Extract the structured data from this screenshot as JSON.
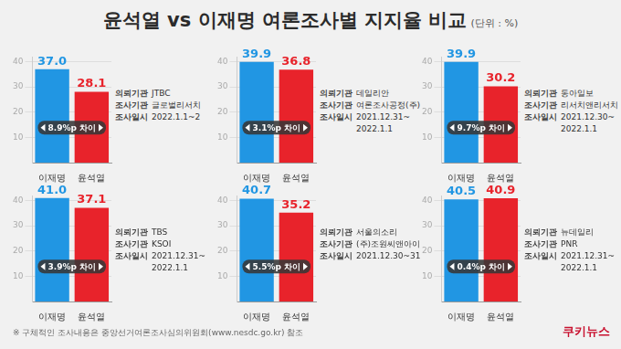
{
  "title": "윤석열 vs 이재명 여론조사별 지지율 비교",
  "unit": "(단위 : %)",
  "footnote": "※ 구체적인 조사내용은 중앙선거여론조사심의위원회(www.nesdc.go.kr) 참조",
  "source": "쿠키뉴스",
  "chart_data": [
    {
      "type": "bar",
      "categories": [
        "이재명",
        "윤석열"
      ],
      "values": [
        37.0,
        28.1
      ],
      "value_labels": [
        "37.0",
        "28.1"
      ],
      "colors": [
        "#2196e3",
        "#e8232b"
      ],
      "ylim": [
        0,
        42
      ],
      "yticks": [
        10,
        20,
        30,
        40
      ],
      "grid": true,
      "data_labels": true,
      "annotation": "8.9%p 차이",
      "info": [
        {
          "label": "의뢰기관",
          "value": [
            "JTBC"
          ]
        },
        {
          "label": "조사기관",
          "value": [
            "글로벌리서치"
          ]
        },
        {
          "label": "조사일시",
          "value": [
            "2022.1.1~2"
          ]
        }
      ]
    },
    {
      "type": "bar",
      "categories": [
        "이재명",
        "윤석열"
      ],
      "values": [
        39.9,
        36.8
      ],
      "value_labels": [
        "39.9",
        "36.8"
      ],
      "colors": [
        "#2196e3",
        "#e8232b"
      ],
      "ylim": [
        0,
        42
      ],
      "yticks": [
        10,
        20,
        30,
        40
      ],
      "grid": true,
      "data_labels": true,
      "annotation": "3.1%p 차이",
      "info": [
        {
          "label": "의뢰기관",
          "value": [
            "데일리안"
          ]
        },
        {
          "label": "조사기관",
          "value": [
            "여론조사공정(주)"
          ]
        },
        {
          "label": "조사일시",
          "value": [
            "2021.12.31~",
            "2022.1.1"
          ]
        }
      ]
    },
    {
      "type": "bar",
      "categories": [
        "이재명",
        "윤석열"
      ],
      "values": [
        39.9,
        30.2
      ],
      "value_labels": [
        "39.9",
        "30.2"
      ],
      "colors": [
        "#2196e3",
        "#e8232b"
      ],
      "ylim": [
        0,
        42
      ],
      "yticks": [
        10,
        20,
        30,
        40
      ],
      "grid": true,
      "data_labels": true,
      "annotation": "9.7%p 차이",
      "info": [
        {
          "label": "의뢰기관",
          "value": [
            "동아일보"
          ]
        },
        {
          "label": "조사기관",
          "value": [
            "리서치앤리서치"
          ]
        },
        {
          "label": "조사일시",
          "value": [
            "2021.12.30~",
            "2022.1.1"
          ]
        }
      ]
    },
    {
      "type": "bar",
      "categories": [
        "이재명",
        "윤석열"
      ],
      "values": [
        41.0,
        37.1
      ],
      "value_labels": [
        "41.0",
        "37.1"
      ],
      "colors": [
        "#2196e3",
        "#e8232b"
      ],
      "ylim": [
        0,
        42
      ],
      "yticks": [
        10,
        20,
        30,
        40
      ],
      "grid": true,
      "data_labels": true,
      "annotation": "3.9%p 차이",
      "info": [
        {
          "label": "의뢰기관",
          "value": [
            "TBS"
          ]
        },
        {
          "label": "조사기관",
          "value": [
            "KSOI"
          ]
        },
        {
          "label": "조사일시",
          "value": [
            "2021.12.31~",
            "2022.1.1"
          ]
        }
      ]
    },
    {
      "type": "bar",
      "categories": [
        "이재명",
        "윤석열"
      ],
      "values": [
        40.7,
        35.2
      ],
      "value_labels": [
        "40.7",
        "35.2"
      ],
      "colors": [
        "#2196e3",
        "#e8232b"
      ],
      "ylim": [
        0,
        42
      ],
      "yticks": [
        10,
        20,
        30,
        40
      ],
      "grid": true,
      "data_labels": true,
      "annotation": "5.5%p 차이",
      "info": [
        {
          "label": "의뢰기관",
          "value": [
            "서울의소리"
          ]
        },
        {
          "label": "조사기관",
          "value": [
            "(주)조원씨앤아이"
          ]
        },
        {
          "label": "조사일시",
          "value": [
            "2021.12.30~31"
          ]
        }
      ]
    },
    {
      "type": "bar",
      "categories": [
        "이재명",
        "윤석열"
      ],
      "values": [
        40.5,
        40.9
      ],
      "value_labels": [
        "40.5",
        "40.9"
      ],
      "colors": [
        "#2196e3",
        "#e8232b"
      ],
      "ylim": [
        0,
        42
      ],
      "yticks": [
        10,
        20,
        30,
        40
      ],
      "grid": true,
      "data_labels": true,
      "annotation": "0.4%p 차이",
      "info": [
        {
          "label": "의뢰기관",
          "value": [
            "뉴데일리"
          ]
        },
        {
          "label": "조사기관",
          "value": [
            "PNR"
          ]
        },
        {
          "label": "조사일시",
          "value": [
            "2021.12.31~",
            "2022.1.1"
          ]
        }
      ]
    }
  ]
}
